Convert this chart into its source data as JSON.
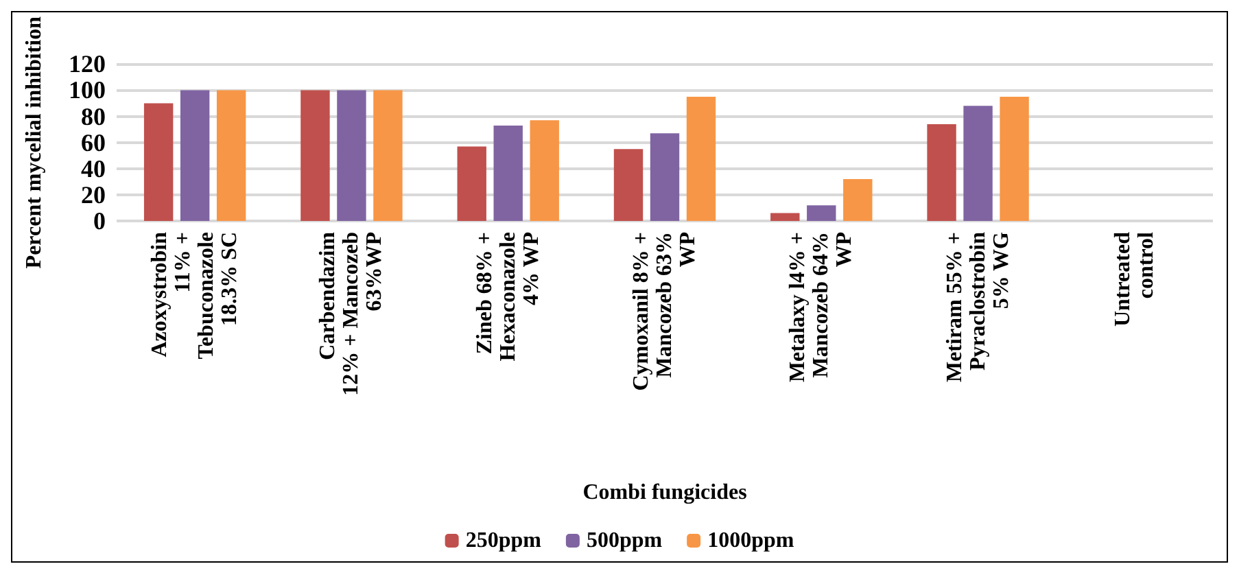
{
  "chart_data": {
    "type": "bar",
    "xlabel": "Combi fungicides",
    "ylabel": "Percent mycelial inhibition",
    "categories": [
      "Azoxystrobin\n11% +\nTebuconazole\n18.3% SC",
      "Carbendazim\n12% + Mancozeb\n63%WP",
      "Zineb 68% +\nHexaconazole\n4% WP",
      "Cymoxanil 8% +\nMancozeb 63%\nWP",
      "Metalaxy l4% +\nMancozeb 64%\nWP",
      "Metiram 55% +\nPyraclostrobin\n5% WG",
      "Untreated\ncontrol"
    ],
    "series": [
      {
        "name": "250ppm",
        "color": "#c0504d",
        "values": [
          90,
          100,
          57,
          55,
          6,
          74,
          0
        ]
      },
      {
        "name": "500ppm",
        "color": "#8064a2",
        "values": [
          100,
          100,
          73,
          67,
          12,
          88,
          0
        ]
      },
      {
        "name": "1000ppm",
        "color": "#f79646",
        "values": [
          100,
          100,
          77,
          95,
          32,
          95,
          0
        ]
      }
    ],
    "ylim": [
      0,
      120
    ],
    "yticks": [
      0,
      20,
      40,
      60,
      80,
      100,
      120
    ],
    "grid": "y",
    "legend": "bottom"
  }
}
